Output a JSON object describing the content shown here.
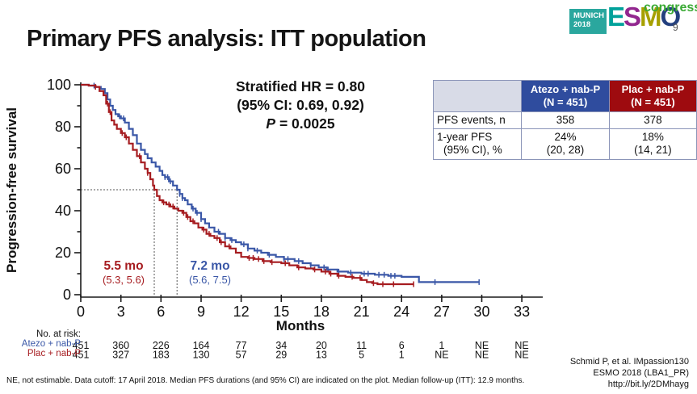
{
  "slide": {
    "title": "Primary PFS analysis: ITT population",
    "footnote": "NE, not estimable. Data cutoff: 17 April 2018. Median PFS durations (and 95% CI) are indicated on the plot. Median follow-up (ITT): 12.9 months.",
    "citation": [
      "Schmid P, et al. IMpassion130",
      "ESMO 2018 (LBA1_PR)",
      "http://bit.ly/2DMhayg"
    ]
  },
  "logo": {
    "venue_line1": "MUNICH",
    "venue_line2": "2018",
    "letters": [
      {
        "char": "E",
        "color": "#00A19A"
      },
      {
        "char": "S",
        "color": "#92278F"
      },
      {
        "char": "M",
        "color": "#A6A000"
      },
      {
        "char": "O",
        "color": "#24407E"
      }
    ],
    "congress": "congress",
    "page": "9",
    "venue_bg": "#2AA79E"
  },
  "annotation": {
    "line1": "Stratified HR = 0.80",
    "line2": "(95% CI: 0.69, 0.92)",
    "p_italic": "P",
    "p_rest": " = 0.0025"
  },
  "medians": {
    "plac": {
      "value": "5.5 mo",
      "ci": "(5.3, 5.6)",
      "color": "#A61C20"
    },
    "atezo": {
      "value": "7.2 mo",
      "ci": "(5.6, 7.5)",
      "color": "#3A57A7"
    }
  },
  "results_table": {
    "columns": [
      {
        "line1": "Atezo + nab-P",
        "line2": "(N = 451)",
        "color": "#2F4C9E"
      },
      {
        "line1": "Plac + nab-P",
        "line2": "(N = 451)",
        "color": "#9E0B0F"
      }
    ],
    "rows": [
      {
        "label": "PFS events, n",
        "values": [
          "358",
          "378"
        ]
      },
      {
        "label_line1": "1-year PFS",
        "label_line2": "(95% CI), %",
        "values": [
          {
            "line1": "24%",
            "line2": "(20, 28)"
          },
          {
            "line1": "18%",
            "line2": "(14, 21)"
          }
        ]
      }
    ]
  },
  "risk_table": {
    "title": "No. at risk:",
    "rows": [
      {
        "label": "Atezo + nab-P",
        "color": "#3A57A7",
        "values": [
          "451",
          "360",
          "226",
          "164",
          "77",
          "34",
          "20",
          "11",
          "6",
          "1",
          "NE",
          "NE"
        ]
      },
      {
        "label": "Plac + nab-P",
        "color": "#A61C20",
        "values": [
          "451",
          "327",
          "183",
          "130",
          "57",
          "29",
          "13",
          "5",
          "1",
          "NE",
          "NE",
          "NE"
        ]
      }
    ]
  },
  "chart_data": {
    "type": "line",
    "subtype": "kaplan-meier-step",
    "title": "Primary PFS analysis: ITT population",
    "xlabel": "Months",
    "ylabel": "Progression-free survival",
    "xlim": [
      0,
      34
    ],
    "ylim": [
      0,
      100
    ],
    "x_ticks": [
      0,
      3,
      6,
      9,
      12,
      15,
      18,
      21,
      24,
      27,
      30,
      33
    ],
    "y_ticks": [
      0,
      20,
      40,
      60,
      80,
      100
    ],
    "y_minor_ticks": [
      10,
      30,
      50,
      70,
      90
    ],
    "grid": false,
    "legend_position": "none",
    "reference_lines": {
      "horizontal_pct": 50,
      "vertical_months": [
        5.5,
        7.2
      ]
    },
    "series": [
      {
        "name": "Atezo + nab-P",
        "color": "#3A57A7",
        "median_months": 7.2,
        "median_ci": [
          5.6,
          7.5
        ],
        "one_year_pfs_pct": 24,
        "steps": [
          [
            0,
            100
          ],
          [
            0.6,
            99.6
          ],
          [
            1.1,
            99
          ],
          [
            1.5,
            98
          ],
          [
            1.8,
            96
          ],
          [
            2.0,
            93
          ],
          [
            2.2,
            90
          ],
          [
            2.4,
            88
          ],
          [
            2.6,
            86
          ],
          [
            2.8,
            85
          ],
          [
            3.0,
            84
          ],
          [
            3.3,
            82
          ],
          [
            3.6,
            79
          ],
          [
            3.9,
            76
          ],
          [
            4.2,
            72
          ],
          [
            4.5,
            69
          ],
          [
            4.8,
            67
          ],
          [
            5.0,
            65
          ],
          [
            5.3,
            63
          ],
          [
            5.6,
            61
          ],
          [
            5.9,
            59
          ],
          [
            6.1,
            57
          ],
          [
            6.3,
            56
          ],
          [
            6.6,
            54
          ],
          [
            6.9,
            52
          ],
          [
            7.2,
            50
          ],
          [
            7.4,
            48
          ],
          [
            7.6,
            46
          ],
          [
            7.8,
            45
          ],
          [
            8.0,
            43
          ],
          [
            8.3,
            41
          ],
          [
            8.6,
            39
          ],
          [
            9.0,
            36
          ],
          [
            9.3,
            34
          ],
          [
            9.6,
            32
          ],
          [
            10.0,
            30
          ],
          [
            10.4,
            29
          ],
          [
            10.8,
            27
          ],
          [
            11.2,
            26
          ],
          [
            11.6,
            25
          ],
          [
            12.0,
            24
          ],
          [
            12.5,
            22
          ],
          [
            13.0,
            21
          ],
          [
            13.5,
            20
          ],
          [
            14.0,
            19
          ],
          [
            14.6,
            18
          ],
          [
            15.2,
            17
          ],
          [
            16.0,
            16
          ],
          [
            16.6,
            15
          ],
          [
            17.2,
            14
          ],
          [
            17.8,
            13
          ],
          [
            18.4,
            12
          ],
          [
            19.2,
            11
          ],
          [
            20.0,
            10.5
          ],
          [
            21.0,
            10
          ],
          [
            22.0,
            9.5
          ],
          [
            23.0,
            9
          ],
          [
            24.0,
            8.5
          ],
          [
            25.2,
            8.5
          ],
          [
            25.3,
            6
          ],
          [
            29.8,
            6
          ]
        ],
        "censor_months": [
          1.0,
          2.9,
          3.2,
          6.3,
          6.5,
          6.7,
          7.4,
          7.6,
          8.4,
          8.7,
          9.0,
          10.3,
          10.8,
          11.3,
          12.2,
          12.5,
          13.2,
          14.1,
          15.2,
          15.5,
          16.3,
          17.2,
          18.2,
          18.5,
          19.3,
          20.2,
          21.2,
          21.5,
          22.3,
          22.7,
          23.2,
          23.5,
          26.5,
          29.8
        ]
      },
      {
        "name": "Plac + nab-P",
        "color": "#A61C20",
        "median_months": 5.5,
        "median_ci": [
          5.3,
          5.6
        ],
        "one_year_pfs_pct": 18,
        "steps": [
          [
            0,
            100
          ],
          [
            0.6,
            99.6
          ],
          [
            1.1,
            99
          ],
          [
            1.4,
            97
          ],
          [
            1.7,
            95
          ],
          [
            1.9,
            91
          ],
          [
            2.1,
            87
          ],
          [
            2.3,
            83
          ],
          [
            2.5,
            81
          ],
          [
            2.7,
            79
          ],
          [
            3.0,
            77
          ],
          [
            3.3,
            75
          ],
          [
            3.6,
            72
          ],
          [
            3.9,
            69
          ],
          [
            4.2,
            66
          ],
          [
            4.5,
            63
          ],
          [
            4.8,
            60
          ],
          [
            5.0,
            58
          ],
          [
            5.2,
            55
          ],
          [
            5.4,
            52
          ],
          [
            5.5,
            50
          ],
          [
            5.7,
            47
          ],
          [
            5.9,
            45
          ],
          [
            6.1,
            44
          ],
          [
            6.4,
            43
          ],
          [
            6.7,
            42
          ],
          [
            7.0,
            41
          ],
          [
            7.3,
            40
          ],
          [
            7.6,
            39
          ],
          [
            7.9,
            37
          ],
          [
            8.2,
            35
          ],
          [
            8.5,
            34
          ],
          [
            8.8,
            32
          ],
          [
            9.1,
            31
          ],
          [
            9.4,
            29
          ],
          [
            9.7,
            28
          ],
          [
            10.0,
            27
          ],
          [
            10.4,
            25
          ],
          [
            10.8,
            23
          ],
          [
            11.2,
            22
          ],
          [
            11.6,
            20
          ],
          [
            12.0,
            18
          ],
          [
            12.5,
            17.5
          ],
          [
            13.0,
            17
          ],
          [
            13.6,
            16
          ],
          [
            14.2,
            15.5
          ],
          [
            15.0,
            15
          ],
          [
            15.6,
            14
          ],
          [
            16.2,
            13
          ],
          [
            16.8,
            12.5
          ],
          [
            17.4,
            12
          ],
          [
            18.0,
            11
          ],
          [
            18.6,
            10
          ],
          [
            19.2,
            9
          ],
          [
            19.8,
            8.5
          ],
          [
            20.4,
            8
          ],
          [
            21.0,
            7
          ],
          [
            21.4,
            6
          ],
          [
            21.8,
            5.5
          ],
          [
            22.2,
            5
          ],
          [
            24.9,
            5
          ]
        ],
        "censor_months": [
          1.1,
          2.0,
          2.2,
          3.1,
          3.4,
          4.4,
          5.0,
          6.2,
          6.6,
          6.9,
          7.7,
          8.0,
          8.4,
          9.2,
          9.6,
          10.2,
          10.5,
          11.1,
          12.6,
          12.9,
          13.3,
          13.7,
          14.3,
          15.3,
          16.3,
          17.5,
          18.3,
          18.7,
          19.3,
          20.3,
          20.9,
          21.9,
          22.6,
          23.4,
          24.9
        ]
      }
    ]
  }
}
